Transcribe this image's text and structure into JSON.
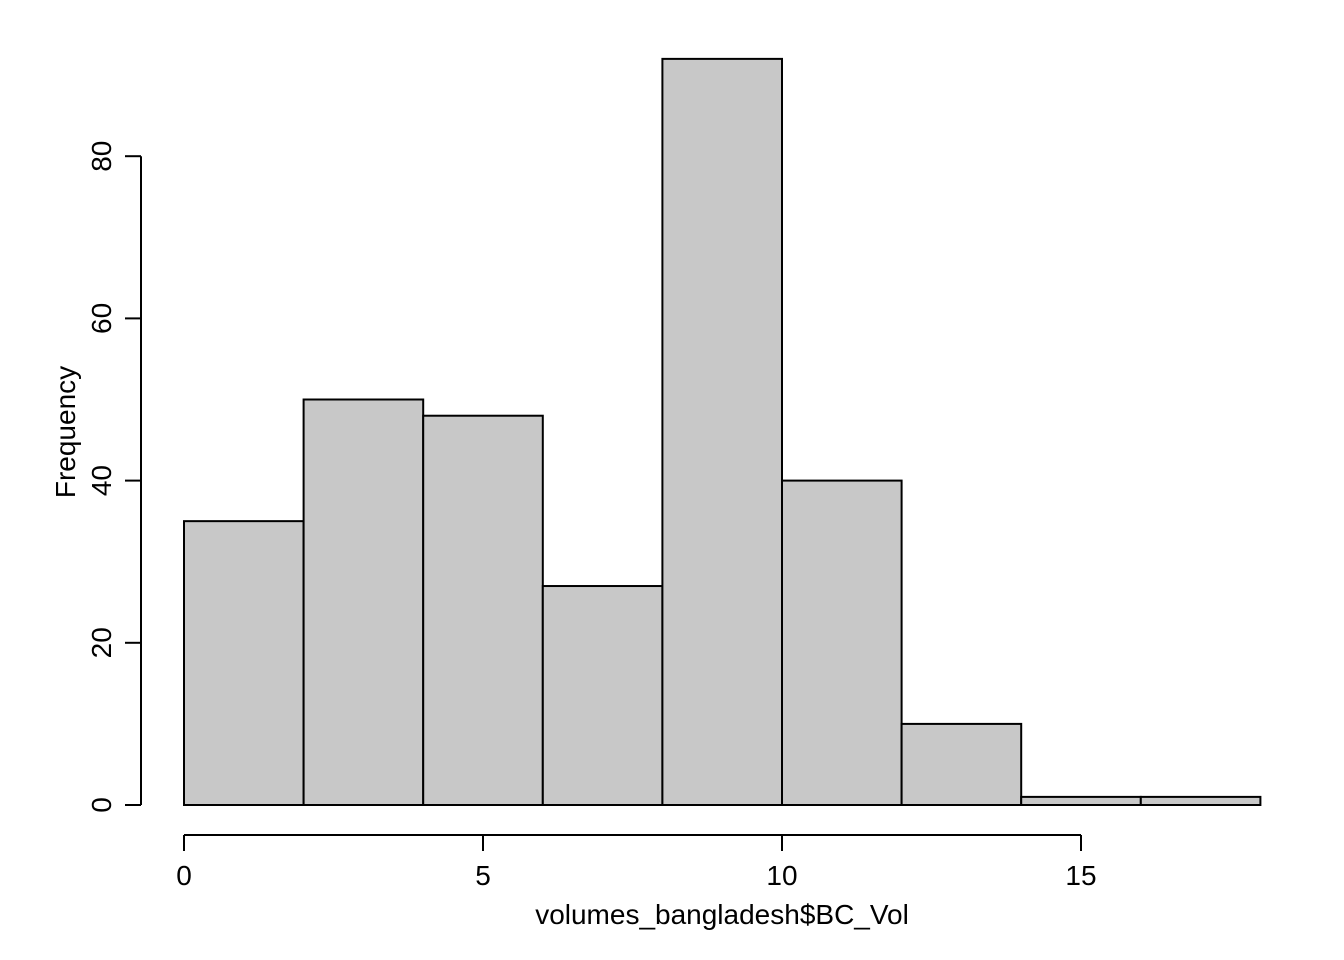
{
  "chart_data": {
    "type": "bar",
    "title": "",
    "xlabel": "volumes_bangladesh$BC_Vol",
    "ylabel": "Frequency",
    "bins": [
      {
        "start": 0,
        "end": 2,
        "count": 35
      },
      {
        "start": 2,
        "end": 4,
        "count": 50
      },
      {
        "start": 4,
        "end": 6,
        "count": 48
      },
      {
        "start": 6,
        "end": 8,
        "count": 27
      },
      {
        "start": 8,
        "end": 10,
        "count": 92
      },
      {
        "start": 10,
        "end": 12,
        "count": 40
      },
      {
        "start": 12,
        "end": 14,
        "count": 10
      },
      {
        "start": 14,
        "end": 16,
        "count": 1
      },
      {
        "start": 16,
        "end": 18,
        "count": 1
      }
    ],
    "xticks": [
      "0",
      "5",
      "10",
      "15"
    ],
    "yticks": [
      "0",
      "20",
      "40",
      "60",
      "80"
    ],
    "xlim": [
      0,
      18
    ],
    "ylim": [
      0,
      92
    ],
    "grid": false,
    "bar_color": "#c8c8c8",
    "edge_color": "#000000"
  }
}
